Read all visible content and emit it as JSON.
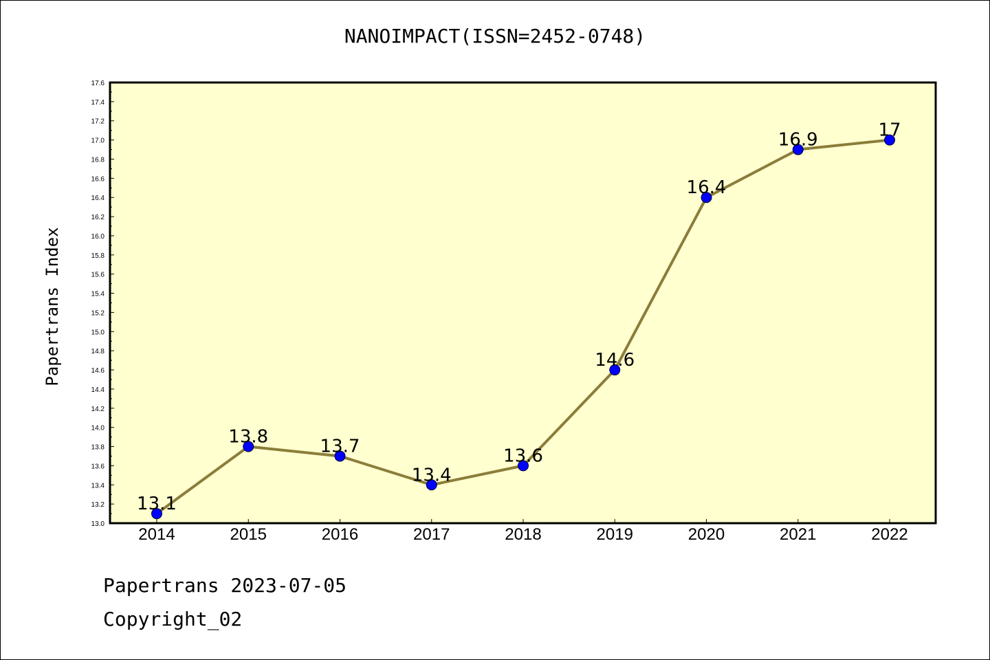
{
  "chart_data": {
    "type": "line",
    "title": "NANOIMPACT(ISSN=2452-0748)",
    "xlabel": "",
    "ylabel": "Papertrans Index",
    "categories": [
      "2014",
      "2015",
      "2016",
      "2017",
      "2018",
      "2019",
      "2020",
      "2021",
      "2022"
    ],
    "values": [
      13.1,
      13.8,
      13.7,
      13.4,
      13.6,
      14.6,
      16.4,
      16.9,
      17.0
    ],
    "data_labels": [
      "13.1",
      "13.8",
      "13.7",
      "13.4",
      "13.6",
      "14.6",
      "16.4",
      "16.9",
      "17"
    ],
    "ylim": [
      13.0,
      17.6
    ],
    "y_tick_step": 0.2,
    "grid": false,
    "legend": "none",
    "colors": {
      "line": "#8B7D3A",
      "marker": "#0000FF",
      "plot_background": "#FFFFD0"
    }
  },
  "footer": {
    "line1": "Papertrans 2023-07-05",
    "line2": "Copyright_02"
  }
}
